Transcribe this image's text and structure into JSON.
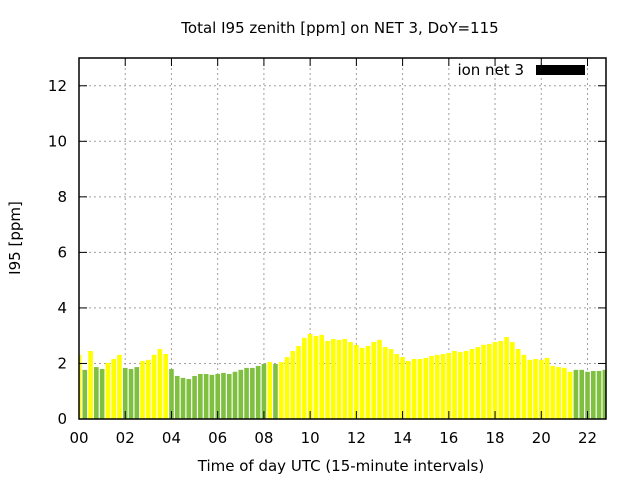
{
  "chart_data": {
    "type": "bar",
    "title": "Total I95 zenith [ppm] on NET 3, DoY=115",
    "xlabel": "Time of day UTC (15-minute intervals)",
    "ylabel": "I95 [ppm]",
    "xlim": [
      0,
      22.8
    ],
    "ylim": [
      0,
      13
    ],
    "grid": true,
    "legend": {
      "position": "top-right",
      "entries": [
        {
          "name": "ion net 3",
          "color": "#000000"
        }
      ]
    },
    "xticks": [
      0,
      2,
      4,
      6,
      8,
      10,
      12,
      14,
      16,
      18,
      20,
      22
    ],
    "xtick_labels": [
      "00",
      "02",
      "04",
      "06",
      "08",
      "10",
      "12",
      "14",
      "16",
      "18",
      "20",
      "22"
    ],
    "yticks": [
      0,
      2,
      4,
      6,
      8,
      10,
      12
    ],
    "ytick_labels": [
      "0",
      "2",
      "4",
      "6",
      "8",
      "10",
      "12"
    ],
    "bar_interval_hours": 0.25,
    "colors": {
      "yellow": "#ffff00",
      "green": "#80c040"
    },
    "values": [
      2.31,
      1.77,
      2.45,
      1.87,
      1.8,
      2.02,
      2.16,
      2.31,
      1.84,
      1.8,
      1.87,
      2.09,
      2.13,
      2.31,
      2.52,
      2.34,
      1.8,
      1.55,
      1.48,
      1.44,
      1.55,
      1.62,
      1.62,
      1.59,
      1.62,
      1.66,
      1.62,
      1.7,
      1.77,
      1.84,
      1.84,
      1.91,
      1.98,
      2.05,
      1.98,
      2.05,
      2.23,
      2.45,
      2.63,
      2.92,
      3.06,
      2.99,
      3.03,
      2.81,
      2.88,
      2.85,
      2.88,
      2.77,
      2.67,
      2.56,
      2.63,
      2.77,
      2.85,
      2.59,
      2.52,
      2.34,
      2.23,
      2.09,
      2.16,
      2.16,
      2.2,
      2.27,
      2.31,
      2.34,
      2.38,
      2.45,
      2.41,
      2.45,
      2.52,
      2.59,
      2.67,
      2.7,
      2.77,
      2.81,
      2.95,
      2.77,
      2.52,
      2.31,
      2.13,
      2.16,
      2.13,
      2.2,
      1.91,
      1.87,
      1.84,
      1.7,
      1.77,
      1.77,
      1.7,
      1.73,
      1.73,
      1.77
    ],
    "bar_colors": "ygyggyyygggyyyyygggggggggggggggggygyyyyyyyyyyyyyyyyyyyyyyyyyyyyyyyyyyyyyyyyyyyyyyyyyyygggggggggg"
  }
}
